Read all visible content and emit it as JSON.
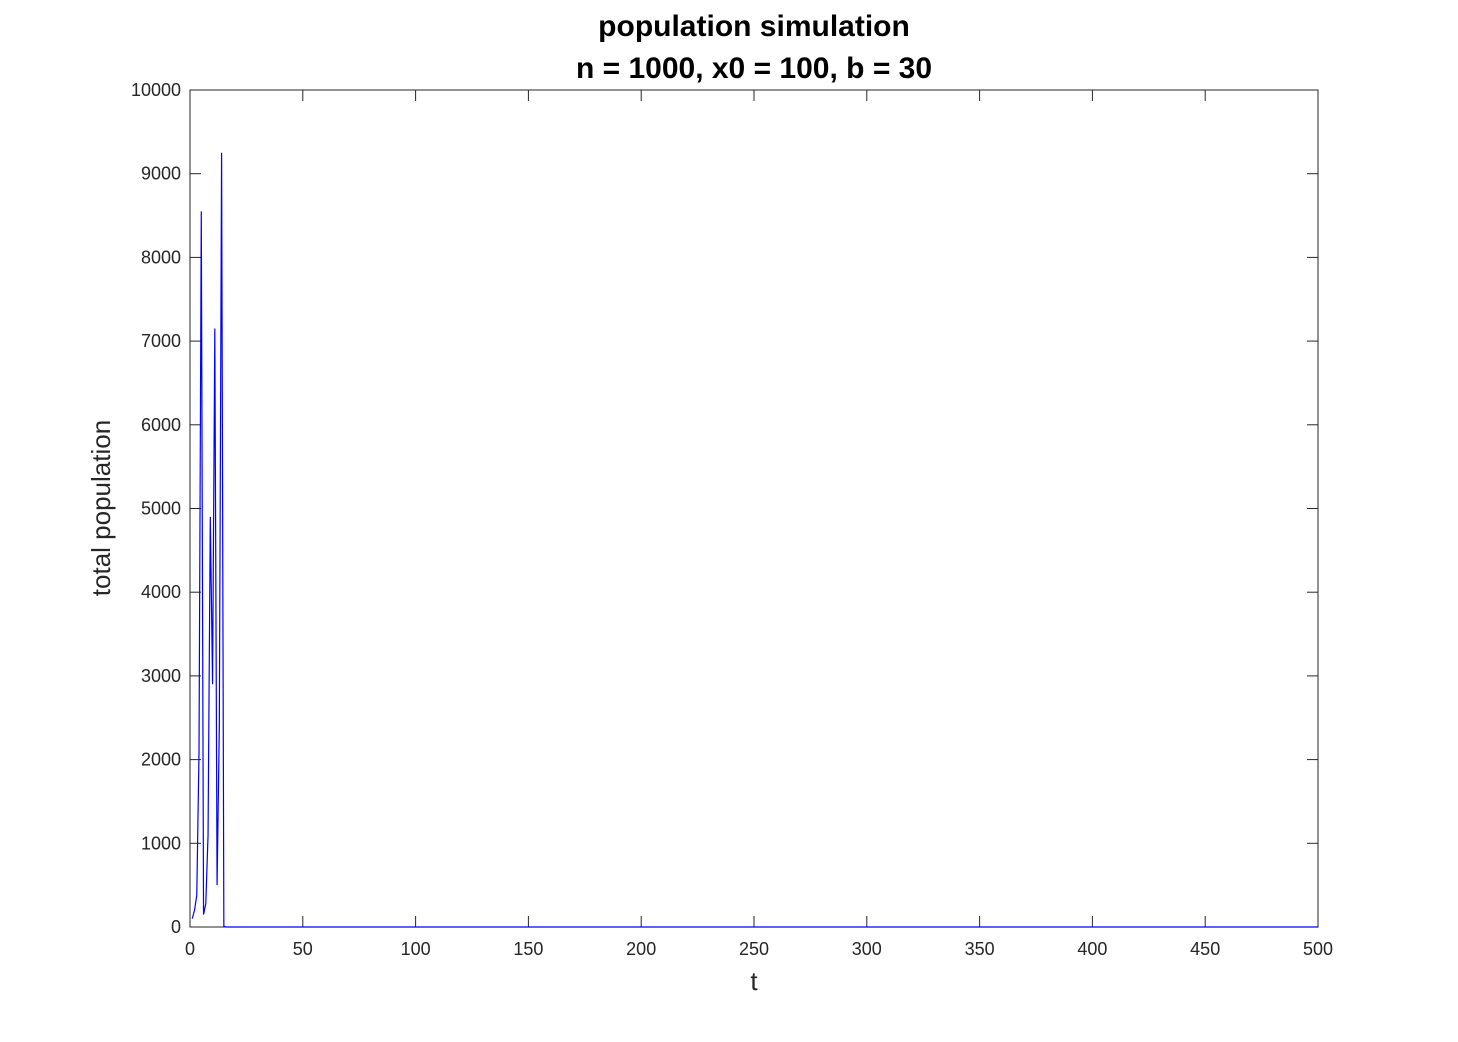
{
  "chart_data": {
    "type": "line",
    "title": "population simulation",
    "subtitle": "n = 1000, x0 = 100, b = 30",
    "xlabel": "t",
    "ylabel": "total population",
    "xlim": [
      0,
      500
    ],
    "ylim": [
      0,
      10000
    ],
    "xticks": [
      0,
      50,
      100,
      150,
      200,
      250,
      300,
      350,
      400,
      450,
      500
    ],
    "yticks": [
      0,
      1000,
      2000,
      3000,
      4000,
      5000,
      6000,
      7000,
      8000,
      9000,
      10000
    ],
    "grid": false,
    "box": true,
    "series": [
      {
        "color": "#0000ff",
        "x": [
          1,
          2,
          3,
          4,
          5,
          6,
          7,
          8,
          9,
          10,
          11,
          12,
          13,
          14,
          15,
          16,
          20,
          50,
          100,
          200,
          300,
          400,
          500
        ],
        "y": [
          100,
          200,
          380,
          2100,
          8550,
          150,
          280,
          1100,
          4900,
          2900,
          7150,
          500,
          2400,
          9250,
          10,
          0,
          0,
          0,
          0,
          0,
          0,
          0,
          0
        ]
      }
    ]
  }
}
